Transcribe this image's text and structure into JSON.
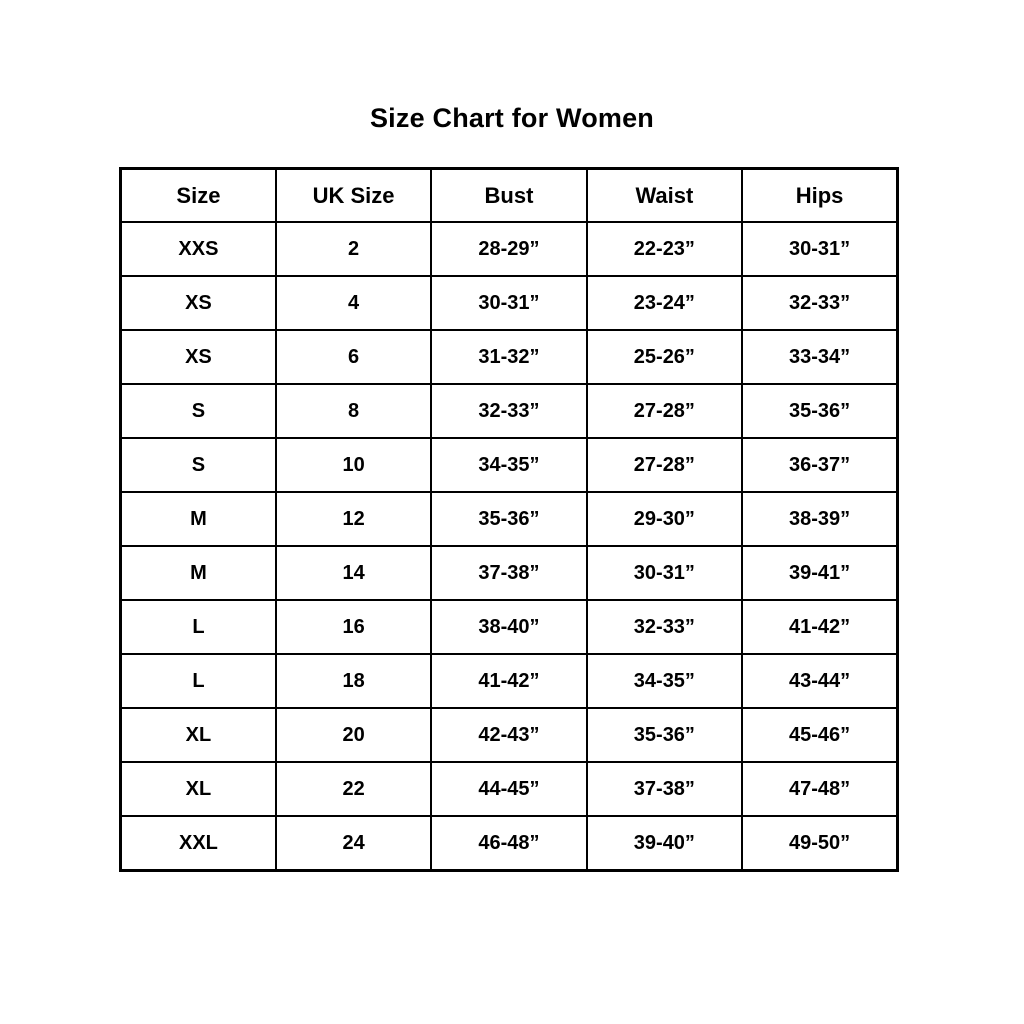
{
  "title": "Size Chart for Women",
  "table": {
    "headers": [
      "Size",
      "UK Size",
      "Bust",
      "Waist",
      "Hips"
    ],
    "rows": [
      [
        "XXS",
        "2",
        "28-29”",
        "22-23”",
        "30-31”"
      ],
      [
        "XS",
        "4",
        "30-31”",
        "23-24”",
        "32-33”"
      ],
      [
        "XS",
        "6",
        "31-32”",
        "25-26”",
        "33-34”"
      ],
      [
        "S",
        "8",
        "32-33”",
        "27-28”",
        "35-36”"
      ],
      [
        "S",
        "10",
        "34-35”",
        "27-28”",
        "36-37”"
      ],
      [
        "M",
        "12",
        "35-36”",
        "29-30”",
        "38-39”"
      ],
      [
        "M",
        "14",
        "37-38”",
        "30-31”",
        "39-41”"
      ],
      [
        "L",
        "16",
        "38-40”",
        "32-33”",
        "41-42”"
      ],
      [
        "L",
        "18",
        "41-42”",
        "34-35”",
        "43-44”"
      ],
      [
        "XL",
        "20",
        "42-43”",
        "35-36”",
        "45-46”"
      ],
      [
        "XL",
        "22",
        "44-45”",
        "37-38”",
        "47-48”"
      ],
      [
        "XXL",
        "24",
        "46-48”",
        "39-40”",
        "49-50”"
      ]
    ]
  },
  "chart_data": {
    "type": "table",
    "title": "Size Chart for Women",
    "columns": [
      "Size",
      "UK Size",
      "Bust",
      "Waist",
      "Hips"
    ],
    "rows": [
      [
        "XXS",
        "2",
        "28-29”",
        "22-23”",
        "30-31”"
      ],
      [
        "XS",
        "4",
        "30-31”",
        "23-24”",
        "32-33”"
      ],
      [
        "XS",
        "6",
        "31-32”",
        "25-26”",
        "33-34”"
      ],
      [
        "S",
        "8",
        "32-33”",
        "27-28”",
        "35-36”"
      ],
      [
        "S",
        "10",
        "34-35”",
        "27-28”",
        "36-37”"
      ],
      [
        "M",
        "12",
        "35-36”",
        "29-30”",
        "38-39”"
      ],
      [
        "M",
        "14",
        "37-38”",
        "30-31”",
        "39-41”"
      ],
      [
        "L",
        "16",
        "38-40”",
        "32-33”",
        "41-42”"
      ],
      [
        "L",
        "18",
        "41-42”",
        "34-35”",
        "43-44”"
      ],
      [
        "XL",
        "20",
        "42-43”",
        "35-36”",
        "45-46”"
      ],
      [
        "XL",
        "22",
        "44-45”",
        "37-38”",
        "47-48”"
      ],
      [
        "XXL",
        "24",
        "46-48”",
        "39-40”",
        "49-50”"
      ]
    ],
    "layout": {
      "title_position": "top-center",
      "grid": true
    },
    "colors": {
      "text": "#000000",
      "background": "#ffffff",
      "border": "#000000"
    }
  }
}
